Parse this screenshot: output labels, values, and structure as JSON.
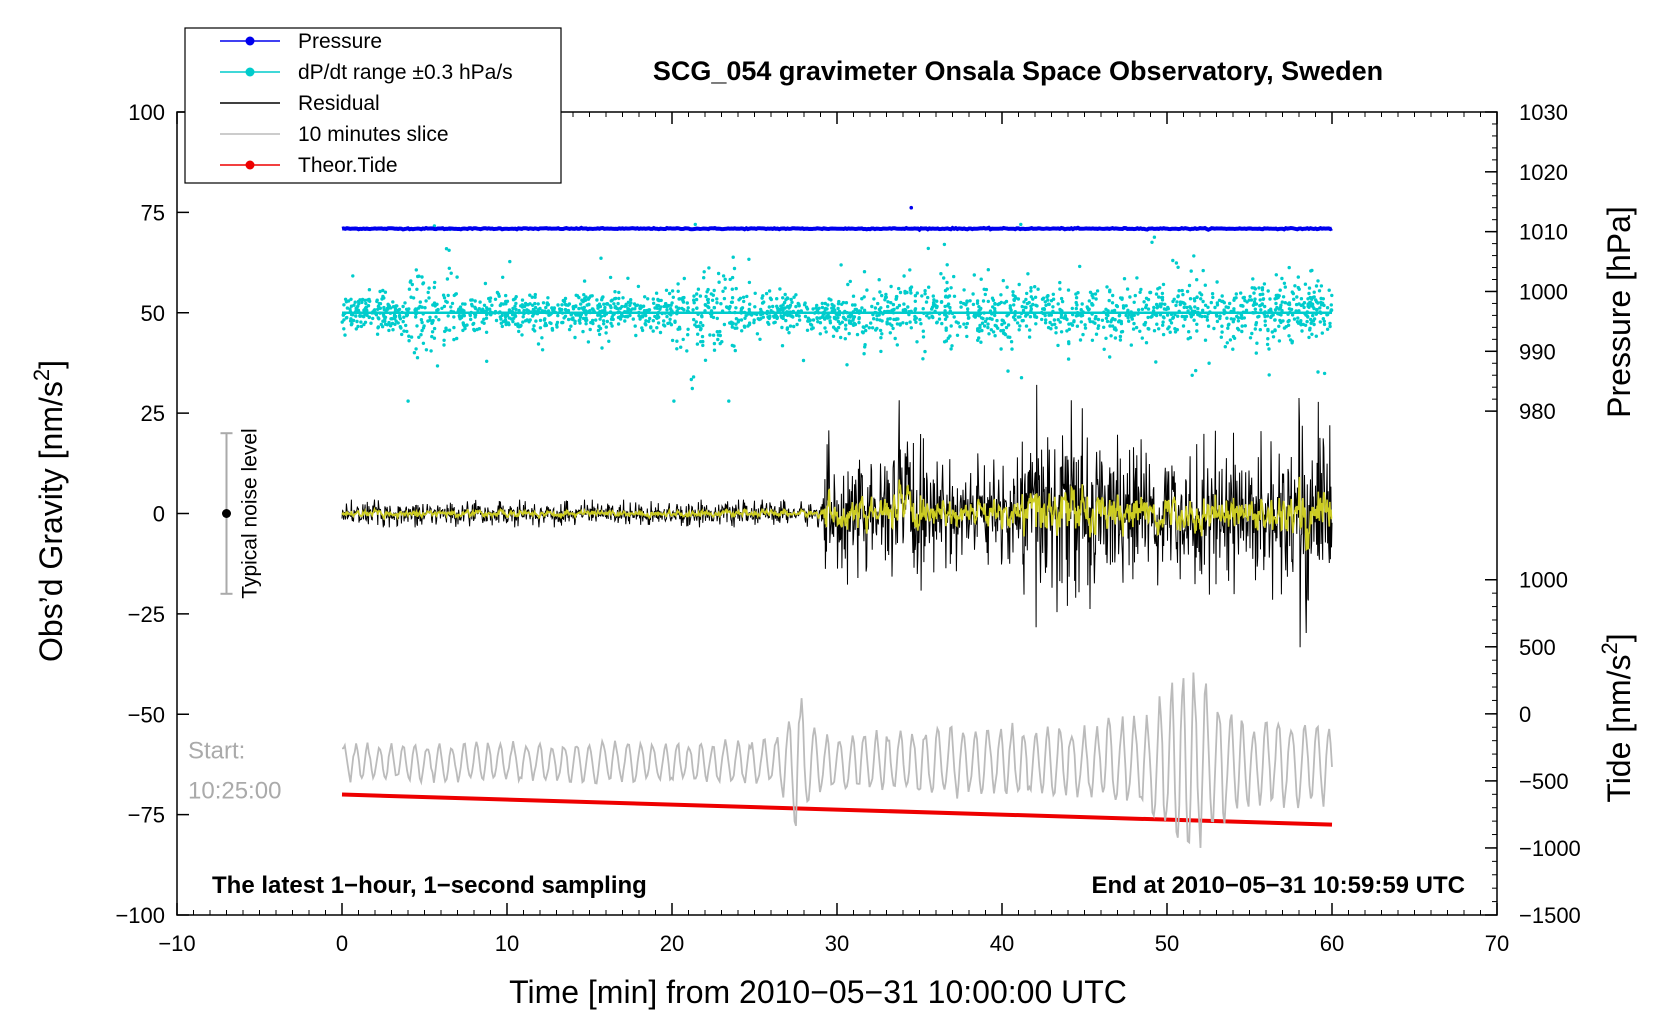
{
  "chart_data": {
    "type": "line",
    "title": "SCG_054 gravimeter Onsala Space Observatory, Sweden",
    "xlabel": "Time [min] from 2010−05−31 10:00:00 UTC",
    "ylabel_left": "Obs’d Gravity [nm/s²]",
    "ylabel_left_base": "Obs’d Gravity [nm/s",
    "ylabel_left_sup": "2",
    "ylabel_left_end": "]",
    "ylabel_pressure": "Pressure [hPa]",
    "ylabel_tide_base": "Tide [nm/s",
    "ylabel_tide_sup": "2",
    "ylabel_tide_end": "]",
    "xlim": [
      -10,
      70
    ],
    "ylim": [
      -100,
      100
    ],
    "xticks": [
      -10,
      0,
      10,
      20,
      30,
      40,
      50,
      60,
      70
    ],
    "xtick_labels": [
      "−10",
      "0",
      "10",
      "20",
      "30",
      "40",
      "50",
      "60",
      "70"
    ],
    "yticks": [
      100,
      75,
      50,
      25,
      0,
      -25,
      -50,
      -75,
      -100
    ],
    "ytick_labels": [
      "100",
      "75",
      "50",
      "25",
      "0",
      "−25",
      "−50",
      "−75",
      "−100"
    ],
    "pressure_ticks": [
      1030,
      1020,
      1010,
      1000,
      990,
      980
    ],
    "pressure_ticks_labels": [
      "1030",
      "1020",
      "1010",
      "1000",
      "990",
      "980"
    ],
    "pressure_axis_range": [
      970,
      1030
    ],
    "tide_ticks": [
      1000,
      500,
      0,
      -500,
      -1000,
      -1500
    ],
    "tide_tick_labels": [
      "1000",
      "500",
      "0",
      "−500",
      "−1000",
      "−1500"
    ],
    "tide_axis_range": [
      -1500,
      1000
    ],
    "legend_position": "top-left",
    "legend": [
      {
        "label": "Pressure",
        "color": "#0000ee",
        "marker": true
      },
      {
        "label": "dP/dt range ±0.3 hPa/s",
        "color": "#00cccc",
        "marker": true
      },
      {
        "label": "Residual",
        "color": "#000000",
        "marker": false
      },
      {
        "label": "10 minutes slice",
        "color": "#bbbbbb",
        "marker": false
      },
      {
        "label": "Theor.Tide",
        "color": "#ee0000",
        "marker": true
      }
    ],
    "series": [
      {
        "name": "Pressure",
        "color": "#0000ee",
        "level_hPa": 1010.5,
        "x_range": [
          0,
          60
        ],
        "outlier": {
          "x": 34.5,
          "hPa": 1014
        }
      },
      {
        "name": "dP/dt range ±0.3 hPa/s",
        "color": "#00cccc",
        "center_on_gravity_axis": 50,
        "x_range": [
          0,
          60
        ],
        "spread_on_gravity_axis": 22
      },
      {
        "name": "Residual",
        "color": "#000000",
        "center": 0,
        "x_range": [
          0,
          60
        ],
        "envelope_x": [
          0,
          10,
          20,
          29,
          29.5,
          33,
          33.5,
          36,
          41,
          42,
          44,
          47,
          50,
          53,
          55,
          57.5,
          58,
          59,
          60
        ],
        "envelope_amp": [
          3,
          3,
          3,
          3,
          18,
          10,
          26,
          12,
          14,
          28,
          25,
          18,
          15,
          18,
          17,
          20,
          35,
          25,
          20
        ]
      },
      {
        "name": "Residual (smoothed)",
        "color": "#cccc22",
        "center": 0,
        "x_range": [
          0,
          60
        ]
      },
      {
        "name": "10 minutes slice",
        "color": "#bbbbbb",
        "center": -62,
        "x_range": [
          0,
          60
        ],
        "start_label": "Start:",
        "start_time": "10:25:00",
        "envelope_x": [
          0,
          26,
          27,
          27.5,
          29,
          35,
          40,
          45,
          47,
          49,
          50.5,
          51.5,
          52.5,
          55,
          57.5,
          60
        ],
        "envelope_amp": [
          5,
          6,
          12,
          20,
          8,
          9,
          10,
          10,
          12,
          14,
          28,
          26,
          20,
          12,
          12,
          12
        ]
      },
      {
        "name": "Theor.Tide",
        "color": "#ee0000",
        "x": [
          0,
          60
        ],
        "y": [
          -70,
          -77.5
        ]
      }
    ],
    "noise_marker": {
      "x": -7,
      "center": 0,
      "half_range": 20,
      "label": "Typical noise level"
    },
    "annotation_left": "The latest 1−hour, 1−second sampling",
    "annotation_right": "End at 2010−05−31 10:59:59 UTC"
  }
}
